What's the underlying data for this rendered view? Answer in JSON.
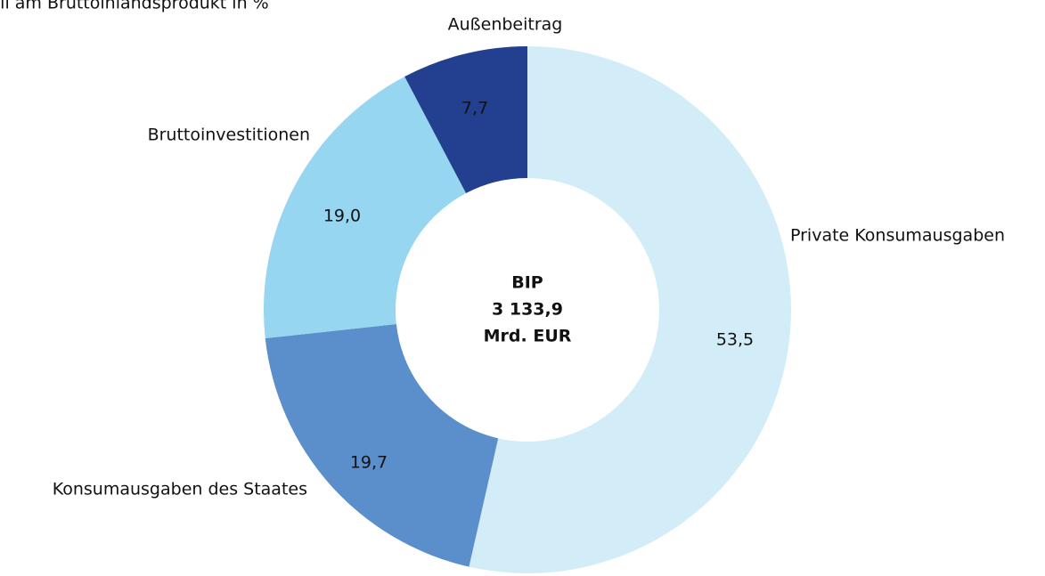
{
  "chart_data": {
    "type": "donut",
    "title": "Anteil am Bruttoinlandsprodukt in %",
    "center_label": [
      "BIP",
      "3 133,9",
      "Mrd. EUR"
    ],
    "categories": [
      "Private Konsumausgaben",
      "Konsumausgaben des Staates",
      "Bruttoinvestitionen",
      "Außenbeitrag"
    ],
    "values": [
      53.5,
      19.7,
      19.0,
      7.7
    ],
    "value_labels": [
      "53,5",
      "19,7",
      "19,0",
      "7,7"
    ],
    "colors": [
      "#d2edf8",
      "#5b8fcb",
      "#96d6f1",
      "#233f8f"
    ]
  }
}
